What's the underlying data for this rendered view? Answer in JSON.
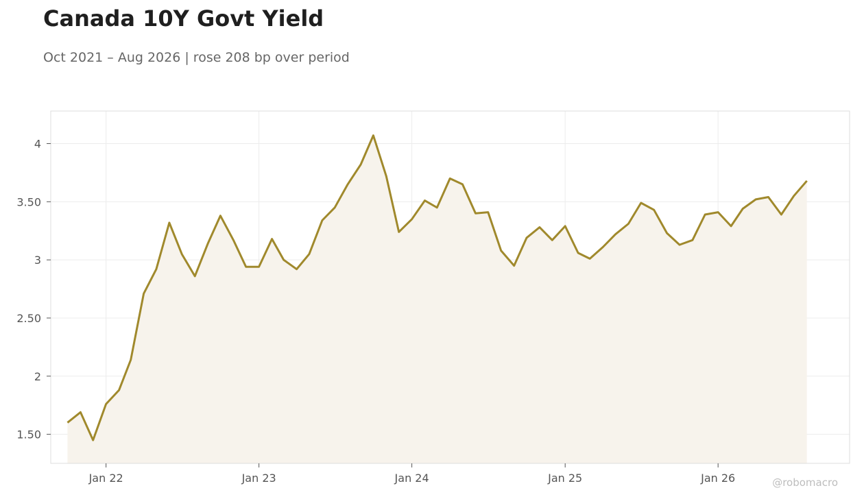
{
  "chart_data": {
    "type": "area",
    "title": "Canada 10Y Govt Yield",
    "subtitle": "Oct 2021 – Aug 2026 | rose 208 bp over period",
    "watermark": "@robomacro",
    "xlabel": "",
    "ylabel": "",
    "ylim": [
      1.25,
      4.28
    ],
    "xlim": [
      "2021-08-22",
      "2026-11-11"
    ],
    "grid": true,
    "legend": "none",
    "colors": {
      "line": "#a0892c",
      "fill": "#f7f3ec",
      "grid": "#ececec",
      "frame": "#dddddd"
    },
    "y_ticks": [
      {
        "value": 1.5,
        "label": "1.50"
      },
      {
        "value": 2,
        "label": "2"
      },
      {
        "value": 2.5,
        "label": "2.50"
      },
      {
        "value": 3,
        "label": "3"
      },
      {
        "value": 3.5,
        "label": "3.50"
      },
      {
        "value": 4,
        "label": "4"
      }
    ],
    "x_ticks": [
      {
        "value": "2022-01-01",
        "label": "Jan 22"
      },
      {
        "value": "2023-01-01",
        "label": "Jan 23"
      },
      {
        "value": "2024-01-01",
        "label": "Jan 24"
      },
      {
        "value": "2025-01-01",
        "label": "Jan 25"
      },
      {
        "value": "2026-01-01",
        "label": "Jan 26"
      }
    ],
    "series": [
      {
        "x": [
          "2021-10",
          "2021-11",
          "2021-12",
          "2022-01",
          "2022-02",
          "2022-03",
          "2022-04",
          "2022-05",
          "2022-06",
          "2022-07",
          "2022-08",
          "2022-09",
          "2022-10",
          "2022-11",
          "2022-12",
          "2023-01",
          "2023-02",
          "2023-03",
          "2023-04",
          "2023-05",
          "2023-06",
          "2023-07",
          "2023-08",
          "2023-09",
          "2023-10",
          "2023-11",
          "2023-12",
          "2024-01",
          "2024-02",
          "2024-03",
          "2024-04",
          "2024-05",
          "2024-06",
          "2024-07",
          "2024-08",
          "2024-09",
          "2024-10",
          "2024-11",
          "2024-12",
          "2025-01",
          "2025-02",
          "2025-03",
          "2025-04",
          "2025-05",
          "2025-06",
          "2025-07",
          "2025-08",
          "2025-09",
          "2025-10",
          "2025-11",
          "2025-12",
          "2026-01",
          "2026-02",
          "2026-03",
          "2026-04",
          "2026-05",
          "2026-06",
          "2026-07",
          "2026-08"
        ],
        "y": [
          1.6,
          1.69,
          1.45,
          1.76,
          1.88,
          2.14,
          2.71,
          2.92,
          3.32,
          3.05,
          2.86,
          3.14,
          3.38,
          3.17,
          2.94,
          2.94,
          3.18,
          3.0,
          2.92,
          3.05,
          3.34,
          3.45,
          3.65,
          3.82,
          4.07,
          3.72,
          3.24,
          3.35,
          3.51,
          3.45,
          3.7,
          3.65,
          3.4,
          3.41,
          3.08,
          2.95,
          3.19,
          3.28,
          3.17,
          3.29,
          3.06,
          3.01,
          3.11,
          3.22,
          3.31,
          3.49,
          3.43,
          3.23,
          3.13,
          3.17,
          3.39,
          3.41,
          3.29,
          3.44,
          3.52,
          3.54,
          3.39,
          3.55,
          3.68
        ]
      }
    ]
  }
}
